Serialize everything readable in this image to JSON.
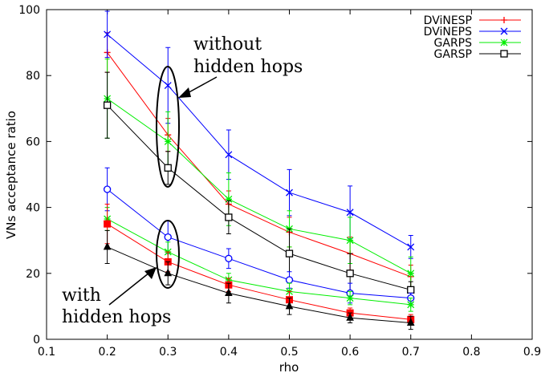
{
  "chart_data": {
    "type": "line",
    "xlabel": "rho",
    "ylabel": "VNs acceptance ratio",
    "xlim": [
      0.1,
      0.9
    ],
    "ylim": [
      0,
      100
    ],
    "xticks": [
      "0.1",
      "0.2",
      "0.3",
      "0.4",
      "0.5",
      "0.6",
      "0.7",
      "0.8",
      "0.9"
    ],
    "yticks": [
      "0",
      "20",
      "40",
      "60",
      "80",
      "100"
    ],
    "legend_position": "top-right",
    "x": [
      0.2,
      0.3,
      0.4,
      0.5,
      0.6,
      0.7
    ],
    "series": [
      {
        "name": "DViNESP",
        "group": "without",
        "color": "#ff0000",
        "marker": "plus",
        "values": [
          87,
          62,
          41,
          32.5,
          26,
          19
        ],
        "err": [
          6,
          5,
          4,
          4.5,
          5,
          3.5
        ]
      },
      {
        "name": "DViNEPS",
        "group": "without",
        "color": "#0000ff",
        "marker": "x",
        "values": [
          92.5,
          77,
          56,
          44.5,
          38.5,
          28
        ],
        "err": [
          7,
          11.5,
          7.5,
          7,
          8,
          3.5
        ]
      },
      {
        "name": "GARPS",
        "group": "without",
        "color": "#00ee00",
        "marker": "star",
        "values": [
          73,
          60,
          42.5,
          33.5,
          30,
          20
        ],
        "err": [
          12,
          9,
          8,
          5.5,
          7,
          5
        ]
      },
      {
        "name": "GARSP",
        "group": "without",
        "color": "#000000",
        "marker": "square-open",
        "values": [
          71,
          52,
          37,
          26,
          20,
          15
        ],
        "err": [
          10,
          5,
          5,
          7.5,
          6,
          2.5
        ]
      },
      {
        "group": "with",
        "color": "#0000ff",
        "marker": "circle-open",
        "values": [
          45.5,
          31,
          24.5,
          18,
          14,
          12.5
        ],
        "err": [
          6.5,
          5,
          3,
          2.5,
          3,
          1.5
        ]
      },
      {
        "group": "with",
        "color": "#00ee00",
        "marker": "star",
        "values": [
          36.5,
          26.5,
          18,
          14.5,
          12.5,
          10.5
        ],
        "err": [
          3.5,
          3,
          2,
          2.5,
          2,
          2
        ]
      },
      {
        "group": "with",
        "color": "#ff0000",
        "marker": "square-filled",
        "values": [
          35,
          23.5,
          16.5,
          12,
          8,
          6
        ],
        "err": [
          6,
          3,
          2,
          2.5,
          1.5,
          1.5
        ]
      },
      {
        "group": "with",
        "color": "#000000",
        "marker": "triangle-filled",
        "values": [
          28,
          20,
          14,
          10,
          6.5,
          5
        ],
        "err": [
          5,
          3.5,
          3,
          2.5,
          1.5,
          2
        ]
      }
    ],
    "annotations": [
      {
        "lines": [
          "without",
          "hidden hops"
        ]
      },
      {
        "lines": [
          "with",
          "hidden hops"
        ]
      }
    ]
  }
}
